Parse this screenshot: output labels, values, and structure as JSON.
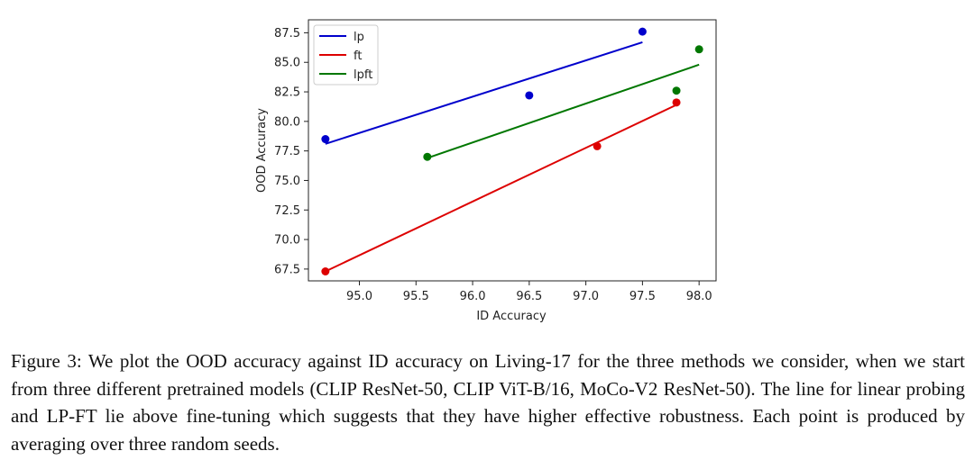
{
  "chart_data": {
    "type": "scatter",
    "title": "",
    "xlabel": "ID Accuracy",
    "ylabel": "OOD Accuracy",
    "xlim": [
      94.55,
      98.15
    ],
    "ylim": [
      66.5,
      88.6
    ],
    "xticks": [
      95.0,
      95.5,
      96.0,
      96.5,
      97.0,
      97.5,
      98.0
    ],
    "yticks": [
      67.5,
      70.0,
      72.5,
      75.0,
      77.5,
      80.0,
      82.5,
      85.0,
      87.5
    ],
    "xtick_labels": [
      "95.0",
      "95.5",
      "96.0",
      "96.5",
      "97.0",
      "97.5",
      "98.0"
    ],
    "ytick_labels": [
      "67.5",
      "70.0",
      "72.5",
      "75.0",
      "77.5",
      "80.0",
      "82.5",
      "85.0",
      "87.5"
    ],
    "legend_position": "top-left",
    "series": [
      {
        "name": "lp",
        "color": "#0000cc",
        "points": [
          [
            94.7,
            78.5
          ],
          [
            96.5,
            82.2
          ],
          [
            97.5,
            87.6
          ]
        ],
        "fit_line": [
          [
            94.7,
            78.1
          ],
          [
            97.5,
            86.7
          ]
        ]
      },
      {
        "name": "ft",
        "color": "#dd0000",
        "points": [
          [
            94.7,
            67.3
          ],
          [
            97.1,
            77.9
          ],
          [
            97.8,
            81.6
          ]
        ],
        "fit_line": [
          [
            94.7,
            67.3
          ],
          [
            97.8,
            81.4
          ]
        ]
      },
      {
        "name": "lpft",
        "color": "#007700",
        "points": [
          [
            95.6,
            77.0
          ],
          [
            97.8,
            82.6
          ],
          [
            98.0,
            86.1
          ]
        ],
        "fit_line": [
          [
            95.6,
            76.9
          ],
          [
            98.0,
            84.8
          ]
        ]
      }
    ]
  },
  "caption": "Figure 3: We plot the OOD accuracy against ID accuracy on Living-17 for the three methods we consider, when we start from three different pretrained models (CLIP ResNet-50, CLIP ViT-B/16, MoCo-V2 ResNet-50). The line for linear probing and LP-FT lie above fine-tuning which suggests that they have higher effective robustness. Each point is produced by averaging over three random seeds."
}
